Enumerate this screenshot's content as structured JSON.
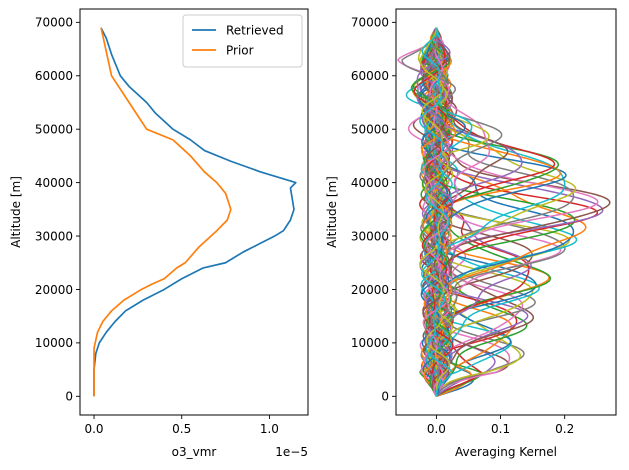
{
  "chart_data": [
    {
      "type": "line",
      "xlabel": "o3_vmr",
      "xscale_label": "1e−5",
      "ylabel": "Altitude [m]",
      "xlim": [
        -0.08,
        1.22
      ],
      "ylim": [
        -3500,
        72500
      ],
      "xticks": [
        0.0,
        0.5,
        1.0
      ],
      "xtick_labels": [
        "0.0",
        "0.5",
        "1.0"
      ],
      "yticks": [
        0,
        10000,
        20000,
        30000,
        40000,
        50000,
        60000,
        70000
      ],
      "ytick_labels": [
        "0",
        "10000",
        "20000",
        "30000",
        "40000",
        "50000",
        "60000",
        "70000"
      ],
      "grid": false,
      "legend": "top-right",
      "series": [
        {
          "name": "Retrieved",
          "color": "#1f77b4",
          "points": [
            [
              0.0,
              0
            ],
            [
              0.0,
              5000
            ],
            [
              0.01,
              8000
            ],
            [
              0.03,
              10000
            ],
            [
              0.07,
              12000
            ],
            [
              0.12,
              14000
            ],
            [
              0.18,
              16000
            ],
            [
              0.28,
              18000
            ],
            [
              0.4,
              20000
            ],
            [
              0.5,
              22000
            ],
            [
              0.62,
              24000
            ],
            [
              0.75,
              25000
            ],
            [
              0.85,
              27000
            ],
            [
              0.97,
              29000
            ],
            [
              1.03,
              30000
            ],
            [
              1.08,
              31000
            ],
            [
              1.12,
              33000
            ],
            [
              1.14,
              35000
            ],
            [
              1.13,
              37000
            ],
            [
              1.12,
              39000
            ],
            [
              1.15,
              40000
            ],
            [
              0.95,
              42000
            ],
            [
              0.78,
              44000
            ],
            [
              0.63,
              46000
            ],
            [
              0.55,
              48000
            ],
            [
              0.45,
              50000
            ],
            [
              0.35,
              53000
            ],
            [
              0.3,
              55000
            ],
            [
              0.2,
              58000
            ],
            [
              0.15,
              60000
            ],
            [
              0.1,
              64000
            ],
            [
              0.07,
              67000
            ],
            [
              0.04,
              69000
            ]
          ]
        },
        {
          "name": "Prior",
          "color": "#ff7f0e",
          "points": [
            [
              0.0,
              0
            ],
            [
              0.0,
              6000
            ],
            [
              0.0,
              9000
            ],
            [
              0.02,
              12000
            ],
            [
              0.05,
              14000
            ],
            [
              0.1,
              16000
            ],
            [
              0.17,
              18000
            ],
            [
              0.27,
              20000
            ],
            [
              0.33,
              21000
            ],
            [
              0.4,
              22000
            ],
            [
              0.47,
              24000
            ],
            [
              0.52,
              25000
            ],
            [
              0.6,
              28000
            ],
            [
              0.7,
              31000
            ],
            [
              0.76,
              33000
            ],
            [
              0.78,
              35000
            ],
            [
              0.77,
              36000
            ],
            [
              0.75,
              38000
            ],
            [
              0.7,
              40000
            ],
            [
              0.63,
              42000
            ],
            [
              0.55,
              45000
            ],
            [
              0.45,
              48000
            ],
            [
              0.3,
              50000
            ],
            [
              0.2,
              55000
            ],
            [
              0.1,
              60000
            ],
            [
              0.04,
              69000
            ]
          ]
        }
      ]
    },
    {
      "type": "line",
      "xlabel": "Averaging Kernel",
      "ylabel": "Altitude [m]",
      "xlim": [
        -0.063,
        0.28
      ],
      "ylim": [
        -3500,
        72500
      ],
      "xticks": [
        0.0,
        0.1,
        0.2
      ],
      "xtick_labels": [
        "0.0",
        "0.1",
        "0.2"
      ],
      "yticks": [
        0,
        10000,
        20000,
        30000,
        40000,
        50000,
        60000,
        70000
      ],
      "ytick_labels": [
        "0",
        "10000",
        "20000",
        "30000",
        "40000",
        "50000",
        "60000",
        "70000"
      ],
      "grid": false,
      "n_kernels": 70,
      "altitude_max": 69000,
      "peak_altitudes": [
        1000,
        2000,
        3000,
        4000,
        5000,
        6000,
        7000,
        8000,
        9000,
        10000,
        11000,
        12000,
        13000,
        14000,
        15000,
        16000,
        17000,
        18000,
        19000,
        20000,
        21000,
        22000,
        23000,
        24000,
        25000,
        26000,
        27000,
        28000,
        29000,
        30000,
        31000,
        32000,
        33000,
        34000,
        35000,
        36000,
        37000,
        38000,
        39000,
        40000,
        41000,
        42000,
        43000,
        44000,
        45000,
        46000,
        47000,
        48000,
        49000,
        50000,
        51000,
        52000,
        53000,
        54000,
        55000,
        56000,
        57000,
        58000,
        59000,
        60000,
        61000,
        62000,
        63000,
        64000,
        65000,
        66000,
        67000,
        68000,
        69000,
        70000
      ],
      "peak_values": [
        0.1,
        0.1,
        0.1,
        0.1,
        0.1,
        0.11,
        0.12,
        0.13,
        0.13,
        0.13,
        0.13,
        0.14,
        0.14,
        0.13,
        0.13,
        0.15,
        0.16,
        0.17,
        0.17,
        0.16,
        0.17,
        0.17,
        0.17,
        0.16,
        0.17,
        0.18,
        0.19,
        0.2,
        0.21,
        0.22,
        0.23,
        0.24,
        0.25,
        0.26,
        0.26,
        0.26,
        0.25,
        0.24,
        0.23,
        0.22,
        0.21,
        0.2,
        0.19,
        0.17,
        0.15,
        0.13,
        0.11,
        0.1,
        0.08,
        0.06,
        0.04,
        0.03,
        0.03,
        0.03,
        0.02,
        0.02,
        0.02,
        0.02,
        0.02,
        0.02,
        0.02,
        0.02,
        0.02,
        0.02,
        0.02,
        0.02,
        0.02,
        0.02,
        0.02,
        0.02
      ],
      "colors": [
        "#1f77b4",
        "#ff7f0e",
        "#2ca02c",
        "#d62728",
        "#9467bd",
        "#8c564b",
        "#e377c2",
        "#7f7f7f",
        "#bcbd22",
        "#17becf"
      ]
    }
  ]
}
